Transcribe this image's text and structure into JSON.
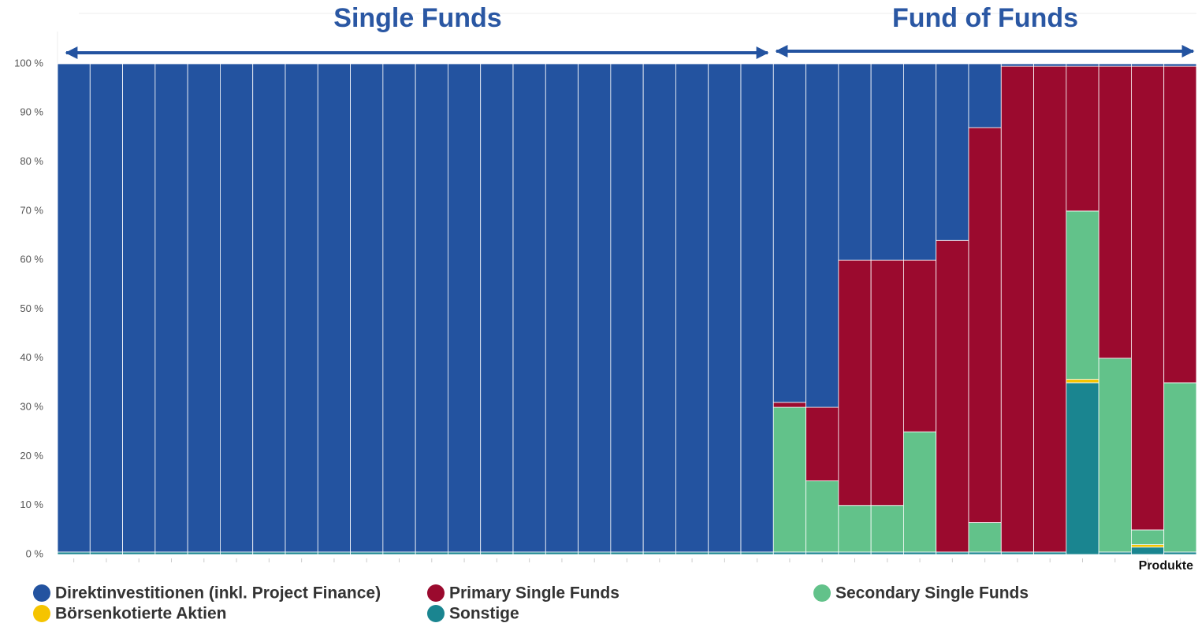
{
  "chart_data": {
    "type": "stacked-bar",
    "annotations": [
      "Single Funds",
      "Fund of Funds"
    ],
    "x_label": "Produkte",
    "categories": [
      null,
      null,
      null,
      null,
      null,
      null,
      null,
      null,
      null,
      null,
      null,
      null,
      null,
      null,
      null,
      null,
      null,
      null,
      null,
      null,
      null,
      null,
      null,
      null,
      null,
      null,
      null,
      null,
      null,
      null,
      null,
      null,
      null,
      null,
      null
    ],
    "series": [
      {
        "name": "Sonstige",
        "color": "#1a8590",
        "values": [
          0.5,
          0.5,
          0.5,
          0.5,
          0.5,
          0.5,
          0.5,
          0.5,
          0.5,
          0.5,
          0.5,
          0.5,
          0.5,
          0.5,
          0.5,
          0.5,
          0.5,
          0.5,
          0.5,
          0.5,
          0.5,
          0.5,
          0.5,
          0.5,
          0.5,
          0.5,
          0.5,
          0.5,
          0.5,
          0.5,
          0.5,
          35,
          0.5,
          1.5,
          0.5
        ]
      },
      {
        "name": "Börsenkotierte Aktien",
        "color": "#f5c400",
        "values": [
          0,
          0,
          0,
          0,
          0,
          0,
          0,
          0,
          0,
          0,
          0,
          0,
          0,
          0,
          0,
          0,
          0,
          0,
          0,
          0,
          0,
          0,
          0,
          0,
          0,
          0,
          0,
          0,
          0,
          0,
          0,
          0.7,
          0,
          0.5,
          0
        ]
      },
      {
        "name": "Secondary Single Funds",
        "color": "#62c28a",
        "values": [
          0,
          0,
          0,
          0,
          0,
          0,
          0,
          0,
          0,
          0,
          0,
          0,
          0,
          0,
          0,
          0,
          0,
          0,
          0,
          0,
          0,
          0,
          29.5,
          14.5,
          9.5,
          9.5,
          24.5,
          0,
          6,
          0,
          0,
          34.3,
          39.5,
          3,
          34.5
        ]
      },
      {
        "name": "Primary Single Funds",
        "color": "#9b0a2e",
        "values": [
          0,
          0,
          0,
          0,
          0,
          0,
          0,
          0,
          0,
          0,
          0,
          0,
          0,
          0,
          0,
          0,
          0,
          0,
          0,
          0,
          0,
          0,
          1,
          15,
          50,
          50,
          35,
          63.5,
          80.5,
          99,
          99,
          29.5,
          59.5,
          94.5,
          64.5
        ]
      },
      {
        "name": "Direktinvestitionen (inkl. Project Finance)",
        "color": "#2353a0",
        "values": [
          99.5,
          99.5,
          99.5,
          99.5,
          99.5,
          99.5,
          99.5,
          99.5,
          99.5,
          99.5,
          99.5,
          99.5,
          99.5,
          99.5,
          99.5,
          99.5,
          99.5,
          99.5,
          99.5,
          99.5,
          99.5,
          99.5,
          69,
          70,
          40,
          40,
          40,
          36,
          13,
          0.5,
          0.5,
          0.5,
          0.5,
          0.5,
          0.5
        ]
      }
    ],
    "ylim": [
      0,
      100
    ],
    "yticks": [
      {
        "value": 0,
        "label": "0 %"
      },
      {
        "value": 10,
        "label": "10 %"
      },
      {
        "value": 20,
        "label": "20 %"
      },
      {
        "value": 30,
        "label": "30 %"
      },
      {
        "value": 40,
        "label": "40 %"
      },
      {
        "value": 50,
        "label": "50 %"
      },
      {
        "value": 60,
        "label": "60 %"
      },
      {
        "value": 70,
        "label": "70 %"
      },
      {
        "value": 80,
        "label": "80 %"
      },
      {
        "value": 90,
        "label": "90 %"
      },
      {
        "value": 100,
        "label": "100 %"
      }
    ],
    "grid": true
  }
}
